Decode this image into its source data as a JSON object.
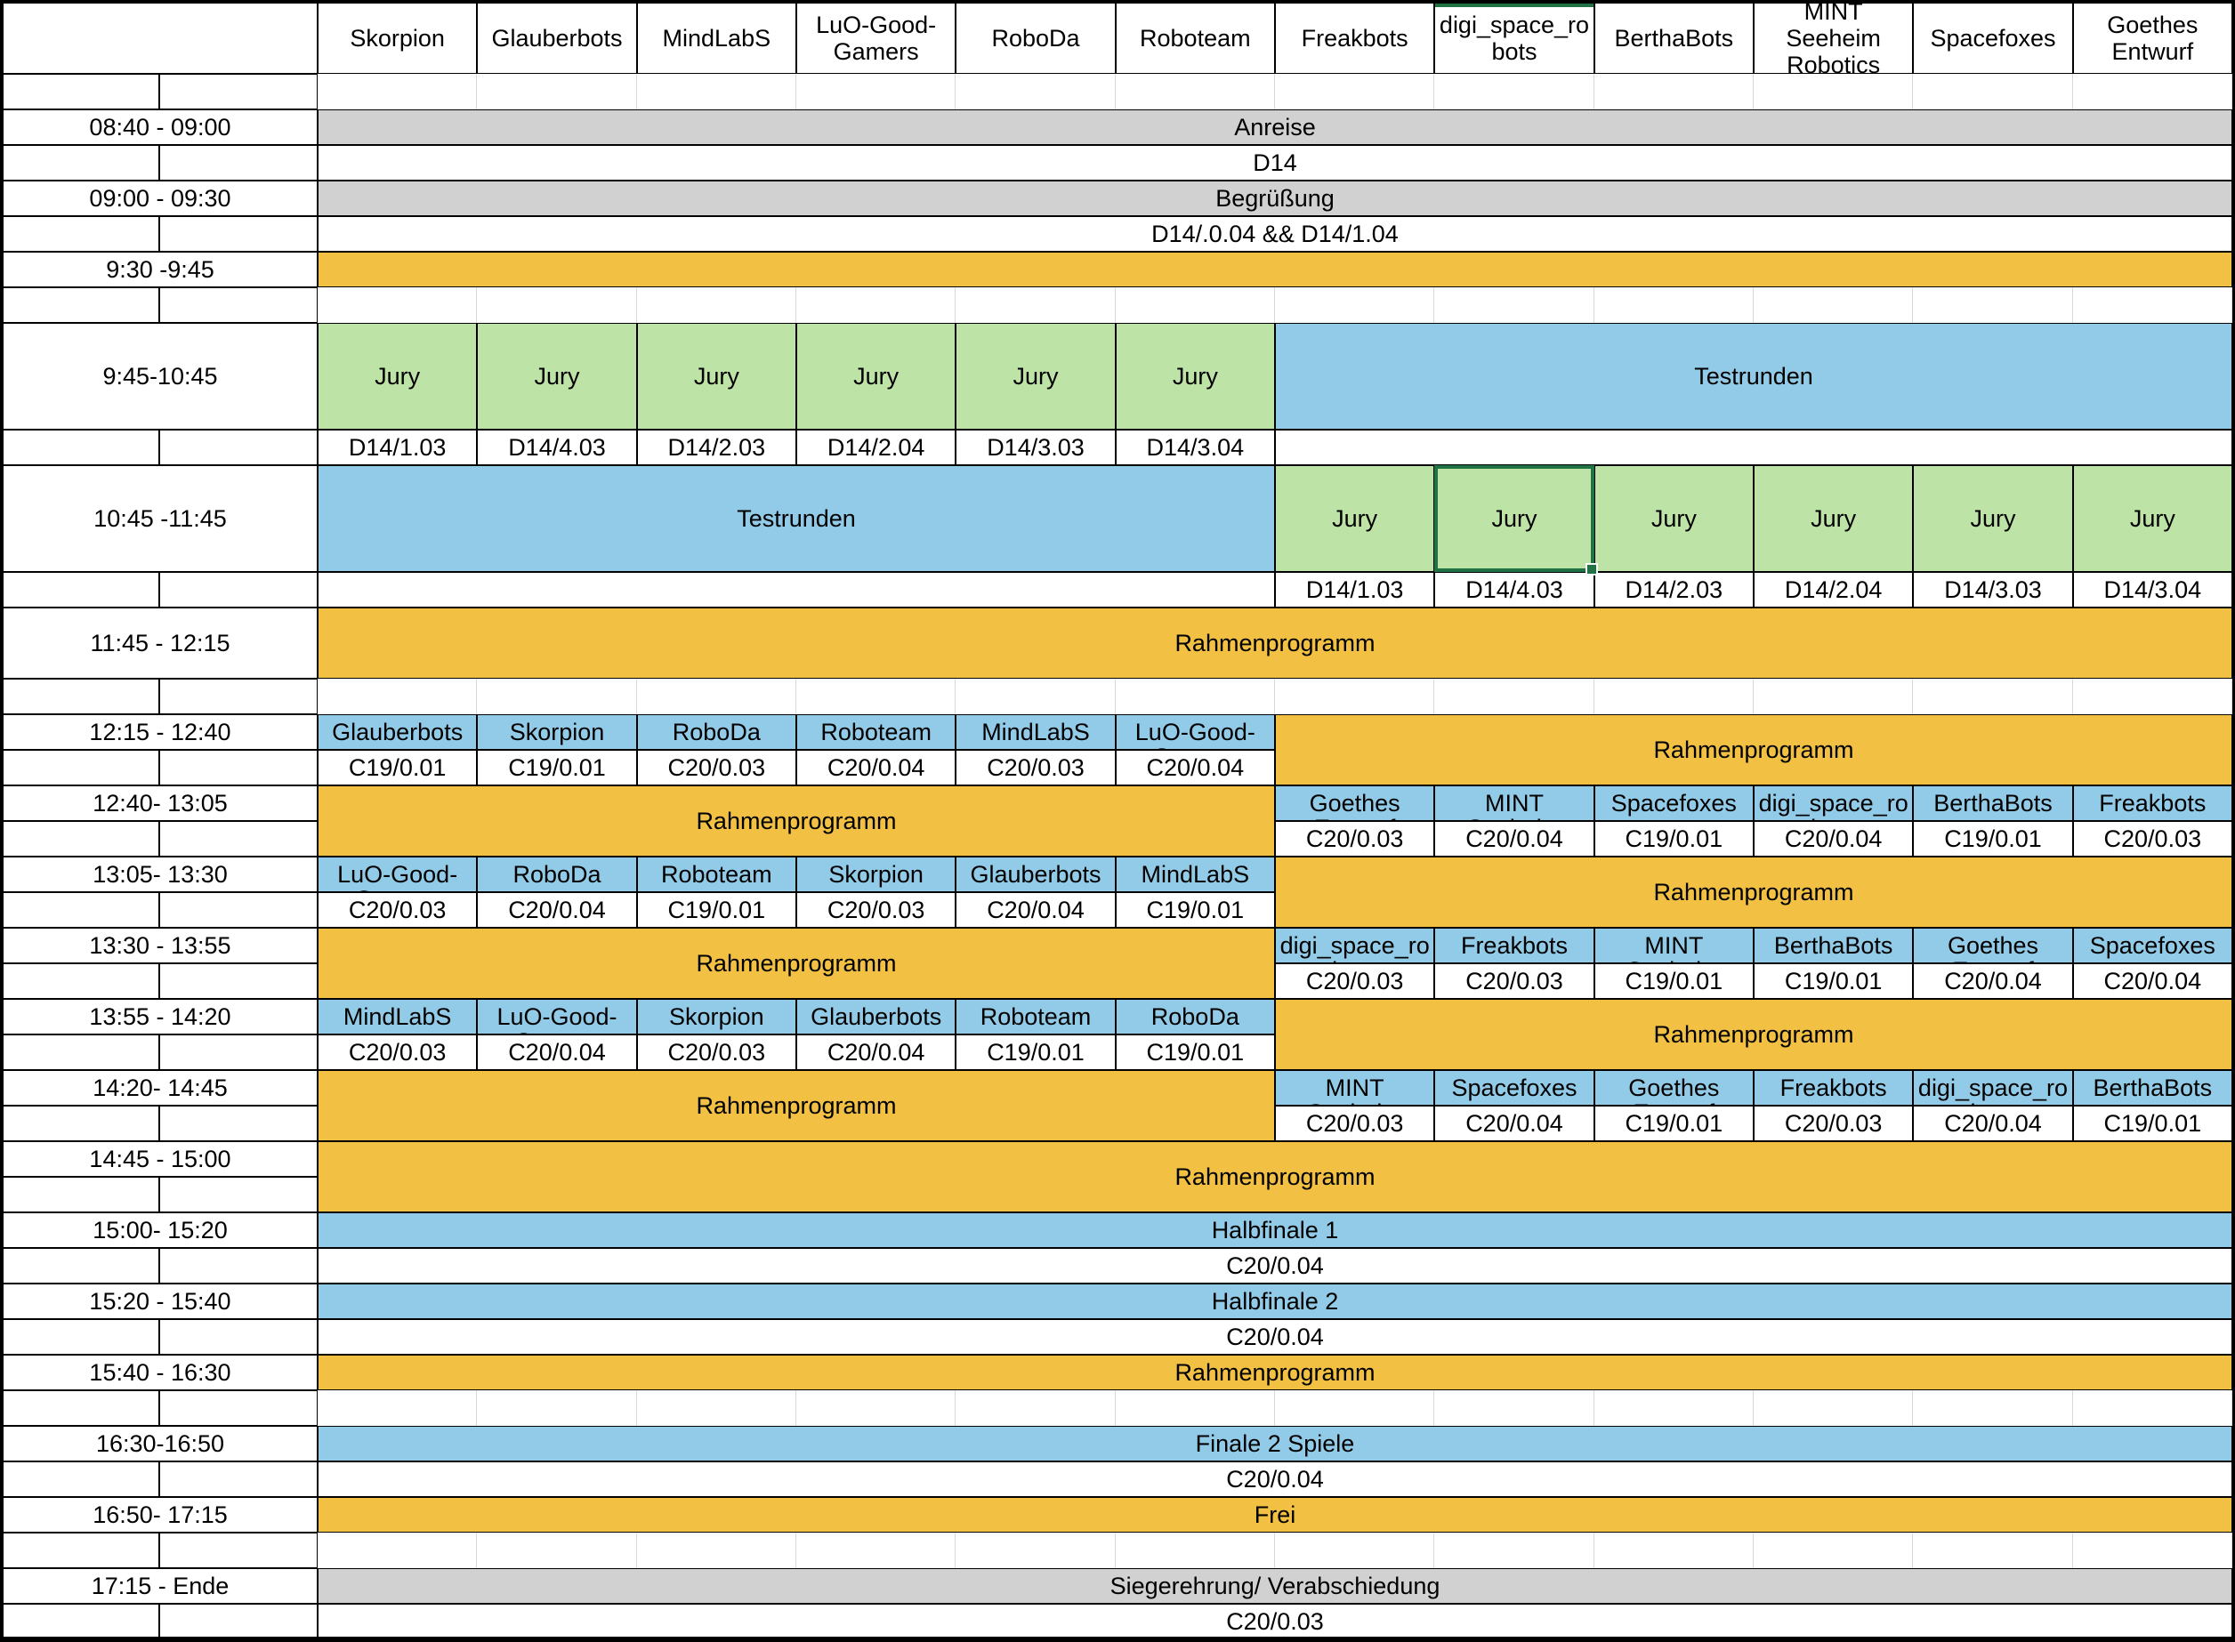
{
  "teams": [
    "Skorpion",
    "Glauberbots",
    "MindLabS",
    "LuO-Good-Gamers",
    "RoboDa",
    "Roboteam",
    "Freakbots",
    "digi_space_robots",
    "BerthaBots",
    "MINT Seeheim Robotics",
    "Spacefoxes",
    "Goethes Entwurf"
  ],
  "colors": {
    "event_orange": "#F2C144",
    "match_blue": "#92CBE8",
    "jury_green": "#BEE3A6",
    "banner_gray": "#D2D1D1",
    "gridline_gray": "#D9D9D9",
    "selection_green": "#217346"
  },
  "selection": {
    "row_time": "10:45 -11:45",
    "column_team": "digi_space_robots"
  },
  "schedule": {
    "arrival": {
      "time": "08:40 - 09:00",
      "label": "Anreise",
      "room": "D14"
    },
    "welcome": {
      "time": "09:00 - 09:30",
      "label": "Begrüßung",
      "room": "D14/.0.04 && D14/1.04"
    },
    "break1": {
      "time": "9:30 -9:45"
    },
    "session1": {
      "time": "9:45-10:45",
      "jury_label": "Jury",
      "testrounds_label": "Testrunden",
      "jury_rooms": [
        "D14/1.03",
        "D14/4.03",
        "D14/2.03",
        "D14/2.04",
        "D14/3.03",
        "D14/3.04"
      ]
    },
    "session2": {
      "time": "10:45 -11:45",
      "jury_label": "Jury",
      "testrounds_label": "Testrunden",
      "jury_rooms": [
        "D14/1.03",
        "D14/4.03",
        "D14/2.03",
        "D14/2.04",
        "D14/3.03",
        "D14/3.04"
      ]
    },
    "rahmen_mid": {
      "time": "11:45 - 12:15",
      "label": "Rahmenprogramm"
    },
    "match_blocks": [
      {
        "time": "12:15 - 12:40",
        "side": "left",
        "other_label": "Rahmenprogramm",
        "teams": [
          {
            "name": "Glauberbots",
            "room": "C19/0.01"
          },
          {
            "name": "Skorpion",
            "room": "C19/0.01"
          },
          {
            "name": "RoboDa",
            "room": "C20/0.03"
          },
          {
            "name": "Roboteam",
            "room": "C20/0.04"
          },
          {
            "name": "MindLabS",
            "room": "C20/0.03"
          },
          {
            "name": "LuO-Good-Gamers",
            "room": "C20/0.04"
          }
        ]
      },
      {
        "time": "12:40- 13:05",
        "side": "right",
        "other_label": "Rahmenprogramm",
        "teams": [
          {
            "name": "Goethes Entwurf",
            "room": "C20/0.03"
          },
          {
            "name": "MINT Seeheim Robotics",
            "room": "C20/0.04"
          },
          {
            "name": "Spacefoxes",
            "room": "C19/0.01"
          },
          {
            "name": "digi_space_robots",
            "room": "C20/0.04"
          },
          {
            "name": "BerthaBots",
            "room": "C19/0.01"
          },
          {
            "name": "Freakbots",
            "room": "C20/0.03"
          }
        ]
      },
      {
        "time": "13:05- 13:30",
        "side": "left",
        "other_label": "Rahmenprogramm",
        "teams": [
          {
            "name": "LuO-Good-Gamers",
            "room": "C20/0.03"
          },
          {
            "name": "RoboDa",
            "room": "C20/0.04"
          },
          {
            "name": "Roboteam",
            "room": "C19/0.01"
          },
          {
            "name": "Skorpion",
            "room": "C20/0.03"
          },
          {
            "name": "Glauberbots",
            "room": "C20/0.04"
          },
          {
            "name": "MindLabS",
            "room": "C19/0.01"
          }
        ]
      },
      {
        "time": "13:30 - 13:55",
        "side": "right",
        "other_label": "Rahmenprogramm",
        "teams": [
          {
            "name": "digi_space_robots",
            "room": "C20/0.03"
          },
          {
            "name": "Freakbots",
            "room": "C20/0.03"
          },
          {
            "name": "MINT Seeheim Robotics",
            "room": "C19/0.01"
          },
          {
            "name": "BerthaBots",
            "room": "C19/0.01"
          },
          {
            "name": "Goethes Entwurf",
            "room": "C20/0.04"
          },
          {
            "name": "Spacefoxes",
            "room": "C20/0.04"
          }
        ]
      },
      {
        "time": "13:55 - 14:20",
        "side": "left",
        "other_label": "Rahmenprogramm",
        "teams": [
          {
            "name": "MindLabS",
            "room": "C20/0.03"
          },
          {
            "name": "LuO-Good-Gamers",
            "room": "C20/0.04"
          },
          {
            "name": "Skorpion",
            "room": "C20/0.03"
          },
          {
            "name": "Glauberbots",
            "room": "C20/0.04"
          },
          {
            "name": "Roboteam",
            "room": "C19/0.01"
          },
          {
            "name": "RoboDa",
            "room": "C19/0.01"
          }
        ]
      },
      {
        "time": "14:20- 14:45",
        "side": "right",
        "other_label": "Rahmenprogramm",
        "teams": [
          {
            "name": "MINT Seeheim Robotics",
            "room": "C20/0.03"
          },
          {
            "name": "Spacefoxes",
            "room": "C20/0.04"
          },
          {
            "name": "Goethes Entwurf",
            "room": "C19/0.01"
          },
          {
            "name": "Freakbots",
            "room": "C20/0.03"
          },
          {
            "name": "digi_space_robots",
            "room": "C20/0.04"
          },
          {
            "name": "BerthaBots",
            "room": "C19/0.01"
          }
        ]
      }
    ],
    "rahmen_after": {
      "time": "14:45 - 15:00",
      "label": "Rahmenprogramm"
    },
    "semifinal1": {
      "time": "15:00- 15:20",
      "label": "Halbfinale 1",
      "room": "C20/0.04"
    },
    "semifinal2": {
      "time": "15:20 - 15:40",
      "label": "Halbfinale 2",
      "room": "C20/0.04"
    },
    "rahmen_late": {
      "time": "15:40 - 16:30",
      "label": "Rahmenprogramm"
    },
    "final": {
      "time": "16:30-16:50",
      "label": "Finale 2 Spiele",
      "room": "C20/0.04"
    },
    "free": {
      "time": "16:50- 17:15",
      "label": "Frei"
    },
    "ceremony": {
      "time": "17:15 - Ende",
      "label": "Siegerehrung/ Verabschiedung",
      "room": "C20/0.03"
    }
  }
}
